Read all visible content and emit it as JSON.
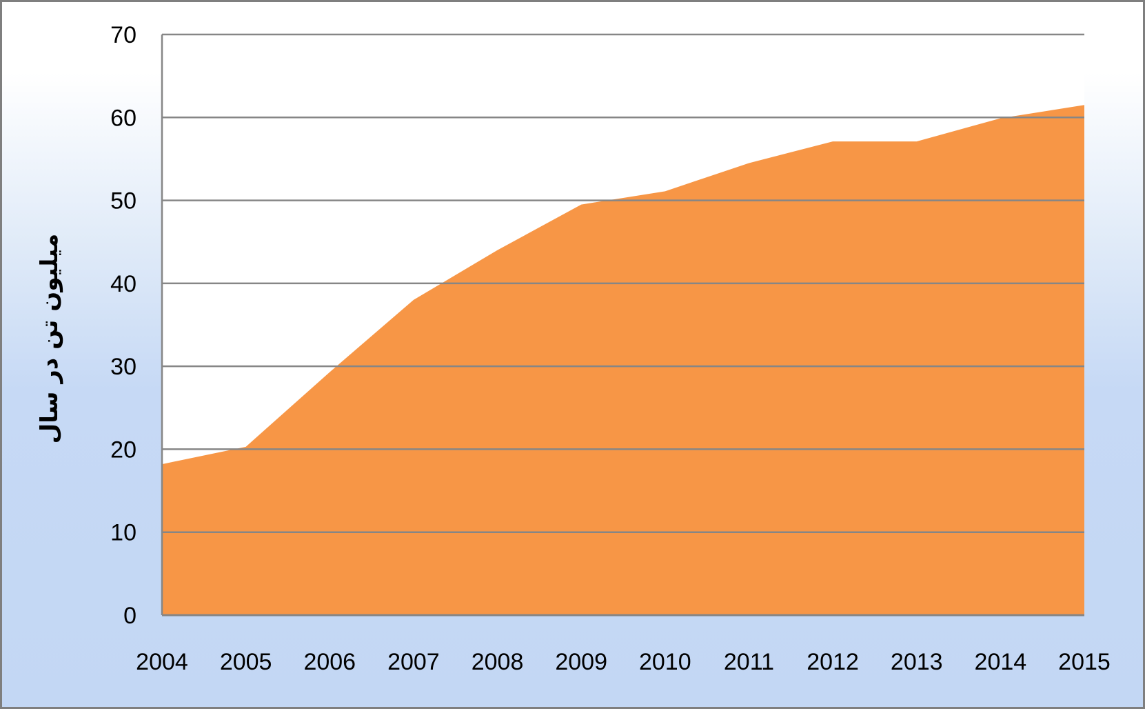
{
  "chart_data": {
    "type": "area",
    "title": "",
    "xlabel": "",
    "ylabel": "میلیون تن در سال",
    "categories": [
      "2004",
      "2005",
      "2006",
      "2007",
      "2008",
      "2009",
      "2010",
      "2011",
      "2012",
      "2013",
      "2014",
      "2015"
    ],
    "series": [
      {
        "values": [
          18.2,
          20.3,
          29.3,
          38.0,
          44.0,
          49.5,
          51.1,
          54.5,
          57.1,
          57.1,
          59.9,
          61.5
        ]
      }
    ],
    "ylim": [
      0,
      70
    ],
    "yticks": [
      0,
      10,
      20,
      30,
      40,
      50,
      60,
      70
    ],
    "grid": "horizontal",
    "legend": "none",
    "colors": {
      "area_fill": "#f79646",
      "gridline": "#868686",
      "plot_background": "#ffffff"
    }
  }
}
